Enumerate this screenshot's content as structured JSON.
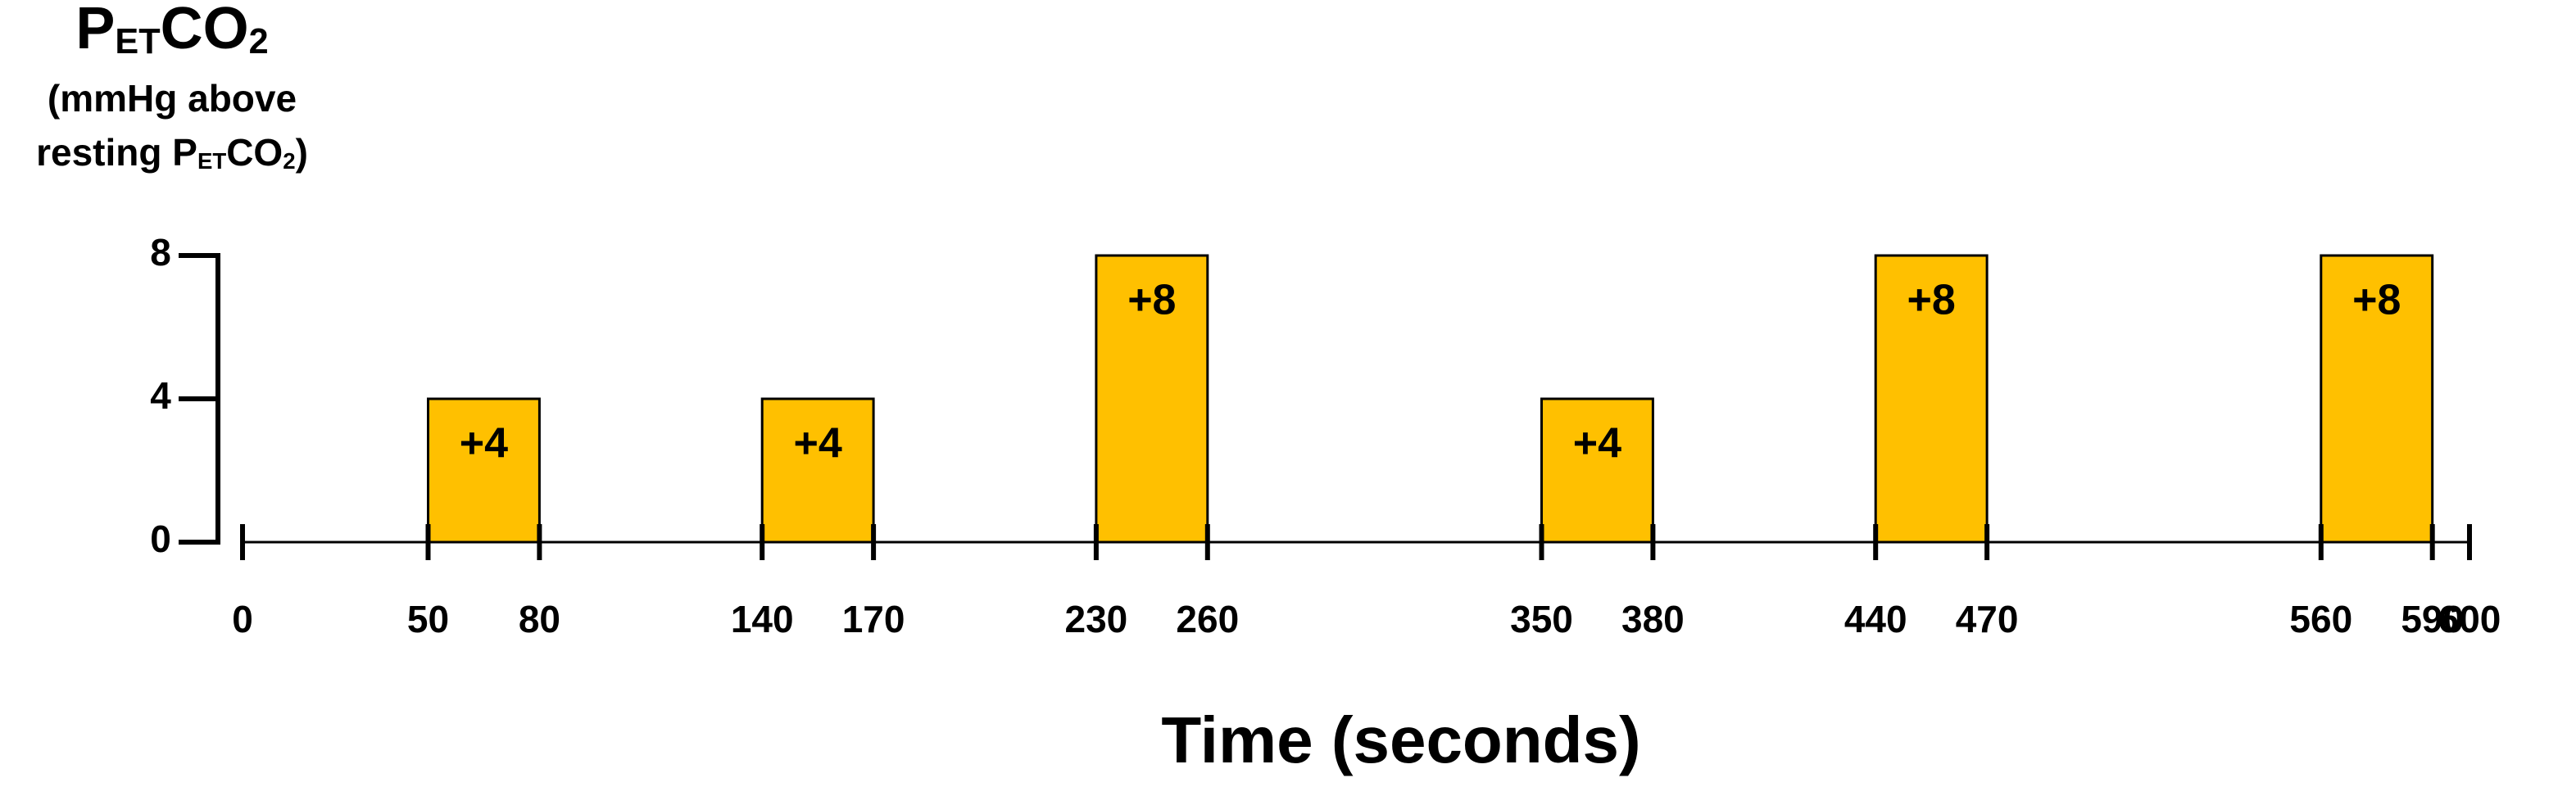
{
  "chart_data": {
    "type": "blocks",
    "ylabel": [
      [
        "P",
        "ET",
        "CO",
        "2"
      ],
      [
        "(mmHg above"
      ],
      [
        "resting P",
        "ET",
        "CO",
        "2",
        ")"
      ]
    ],
    "xlabel": "Time (seconds)",
    "x_start": [
      50,
      140,
      230,
      350,
      440,
      560
    ],
    "x_end": [
      80,
      170,
      260,
      380,
      470,
      590
    ],
    "values": [
      4,
      4,
      8,
      4,
      8,
      8
    ],
    "value_labels": [
      "+4",
      "+4",
      "+8",
      "+4",
      "+8",
      "+8"
    ],
    "color": "#ffc000",
    "xlim": [
      0,
      600
    ],
    "xticks": [
      0,
      50,
      80,
      140,
      170,
      230,
      260,
      350,
      380,
      440,
      470,
      560,
      590,
      600
    ],
    "ylim": [
      0,
      8
    ],
    "yticks": [
      0,
      4,
      8
    ]
  }
}
